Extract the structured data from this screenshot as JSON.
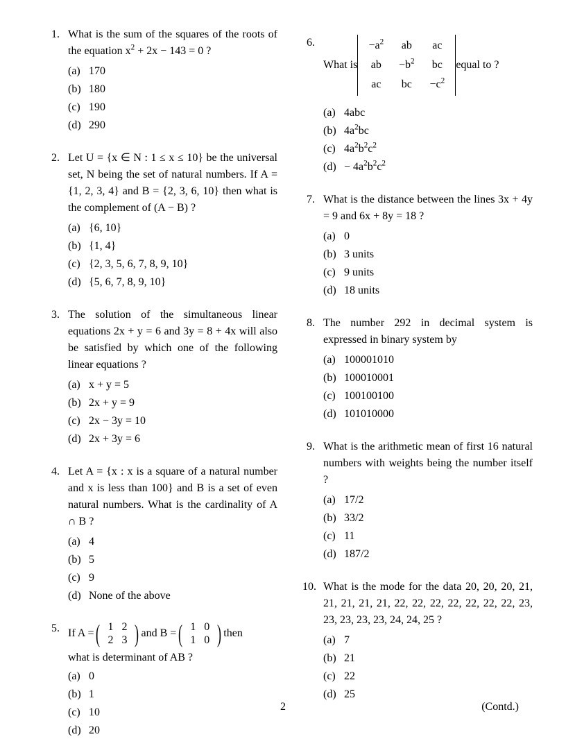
{
  "page_number": "2",
  "contd": "(Contd.)",
  "questions": [
    {
      "num": "1.",
      "text": "What is the sum of the squares of the roots of the equation x² + 2x − 143 = 0 ?",
      "html": "What is the sum of the squares of the roots of the equation x<sup>2</sup> + 2x − 143 = 0 ?",
      "options": [
        {
          "label": "(a)",
          "text": "170"
        },
        {
          "label": "(b)",
          "text": "180"
        },
        {
          "label": "(c)",
          "text": "190"
        },
        {
          "label": "(d)",
          "text": "290"
        }
      ]
    },
    {
      "num": "2.",
      "text": "Let U = {x ∈ N : 1 ≤ x ≤ 10} be the universal set, N being the set of natural numbers. If A = {1, 2, 3, 4} and B = {2, 3, 6, 10} then what is the complement of (A − B) ?",
      "options": [
        {
          "label": "(a)",
          "text": "{6, 10}"
        },
        {
          "label": "(b)",
          "text": "{1, 4}"
        },
        {
          "label": "(c)",
          "text": "{2, 3, 5, 6, 7, 8, 9, 10}"
        },
        {
          "label": "(d)",
          "text": "{5, 6, 7, 8, 9, 10}"
        }
      ]
    },
    {
      "num": "3.",
      "text": "The solution of the simultaneous linear equations 2x + y = 6 and 3y = 8 + 4x will also be satisfied by which one of the following linear equations ?",
      "options": [
        {
          "label": "(a)",
          "text": "x + y = 5"
        },
        {
          "label": "(b)",
          "text": "2x + y = 9"
        },
        {
          "label": "(c)",
          "text": "2x − 3y = 10"
        },
        {
          "label": "(d)",
          "text": "2x + 3y = 6"
        }
      ]
    },
    {
      "num": "4.",
      "text": "Let A = {x : x is a square of a natural number and x is less than 100} and B is a set of even natural numbers. What is the cardinality of A ∩ B ?",
      "options": [
        {
          "label": "(a)",
          "text": "4"
        },
        {
          "label": "(b)",
          "text": "5"
        },
        {
          "label": "(c)",
          "text": "9"
        },
        {
          "label": "(d)",
          "text": "None of the above"
        }
      ]
    },
    {
      "num": "5.",
      "text_pre": "If  A =",
      "matA": [
        [
          "1",
          "2"
        ],
        [
          "2",
          "3"
        ]
      ],
      "text_mid": "  and  B =",
      "matB": [
        [
          "1",
          "0"
        ],
        [
          "1",
          "0"
        ]
      ],
      "text_post": "  then",
      "text2": "what is determinant of AB ?",
      "options": [
        {
          "label": "(a)",
          "text": "0"
        },
        {
          "label": "(b)",
          "text": "1"
        },
        {
          "label": "(c)",
          "text": "10"
        },
        {
          "label": "(d)",
          "text": "20"
        }
      ]
    },
    {
      "num": "6.",
      "text_pre": "What is ",
      "det": [
        [
          "−a²",
          "ab",
          "ac"
        ],
        [
          "ab",
          "−b²",
          "bc"
        ],
        [
          "ac",
          "bc",
          "−c²"
        ]
      ],
      "det_html": [
        [
          "−a<sup>2</sup>",
          "ab",
          "ac"
        ],
        [
          "ab",
          "−b<sup>2</sup>",
          "bc"
        ],
        [
          "ac",
          "bc",
          "−c<sup>2</sup>"
        ]
      ],
      "text_post": " equal to ?",
      "options": [
        {
          "label": "(a)",
          "text": "4abc"
        },
        {
          "label": "(b)",
          "html": "4a<sup>2</sup>bc",
          "text": "4a²bc"
        },
        {
          "label": "(c)",
          "html": "4a<sup>2</sup>b<sup>2</sup>c<sup>2</sup>",
          "text": "4a²b²c²"
        },
        {
          "label": "(d)",
          "html": "− 4a<sup>2</sup>b<sup>2</sup>c<sup>2</sup>",
          "text": "− 4a²b²c²"
        }
      ]
    },
    {
      "num": "7.",
      "text": "What is the distance between the lines 3x + 4y = 9 and 6x + 8y = 18 ?",
      "options": [
        {
          "label": "(a)",
          "text": "0"
        },
        {
          "label": "(b)",
          "text": "3 units"
        },
        {
          "label": "(c)",
          "text": "9 units"
        },
        {
          "label": "(d)",
          "text": "18 units"
        }
      ]
    },
    {
      "num": "8.",
      "text": "The number 292 in decimal system is expressed in binary system by",
      "options": [
        {
          "label": "(a)",
          "text": "100001010"
        },
        {
          "label": "(b)",
          "text": "100010001"
        },
        {
          "label": "(c)",
          "text": "100100100"
        },
        {
          "label": "(d)",
          "text": "101010000"
        }
      ]
    },
    {
      "num": "9.",
      "text": "What is the arithmetic mean of first 16 natural numbers with weights being the number itself ?",
      "options": [
        {
          "label": "(a)",
          "text": "17/2"
        },
        {
          "label": "(b)",
          "text": "33/2"
        },
        {
          "label": "(c)",
          "text": "11"
        },
        {
          "label": "(d)",
          "text": "187/2"
        }
      ]
    },
    {
      "num": "10.",
      "text": "What is the mode for the data 20, 20, 20, 21, 21, 21, 21, 21, 22, 22, 22, 22, 22, 22, 22, 23, 23, 23, 23, 23, 24, 24, 25 ?",
      "options": [
        {
          "label": "(a)",
          "text": "7"
        },
        {
          "label": "(b)",
          "text": "21"
        },
        {
          "label": "(c)",
          "text": "22"
        },
        {
          "label": "(d)",
          "text": "25"
        }
      ]
    }
  ]
}
